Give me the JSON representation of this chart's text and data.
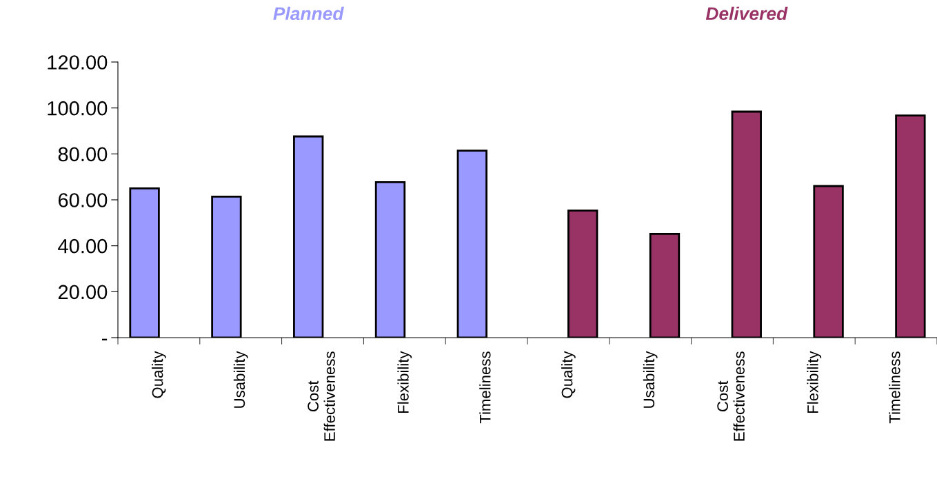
{
  "chart_data": {
    "type": "bar",
    "categories": [
      "Quality",
      "Usability",
      "Cost\nEffectiveness",
      "Flexibility",
      "Timeliness",
      "Quality",
      "Usability",
      "Cost\nEffectiveness",
      "Flexibility",
      "Timeliness"
    ],
    "series": [
      {
        "name": "Planned",
        "color": "#9999ff",
        "values": [
          65.0,
          61.4,
          87.6,
          67.7,
          81.4,
          null,
          null,
          null,
          null,
          null
        ]
      },
      {
        "name": "Delivered",
        "color": "#993366",
        "values": [
          null,
          null,
          null,
          null,
          null,
          55.3,
          45.2,
          98.4,
          66.0,
          96.7
        ]
      }
    ],
    "ylim": [
      0,
      120
    ],
    "yticks": [
      {
        "value": 0,
        "label": "-"
      },
      {
        "value": 20,
        "label": "20.00"
      },
      {
        "value": 40,
        "label": "40.00"
      },
      {
        "value": 60,
        "label": "60.00"
      },
      {
        "value": 80,
        "label": "80.00"
      },
      {
        "value": 100,
        "label": "100.00"
      },
      {
        "value": 120,
        "label": "120.00"
      }
    ],
    "grid": false,
    "legend": "top"
  }
}
